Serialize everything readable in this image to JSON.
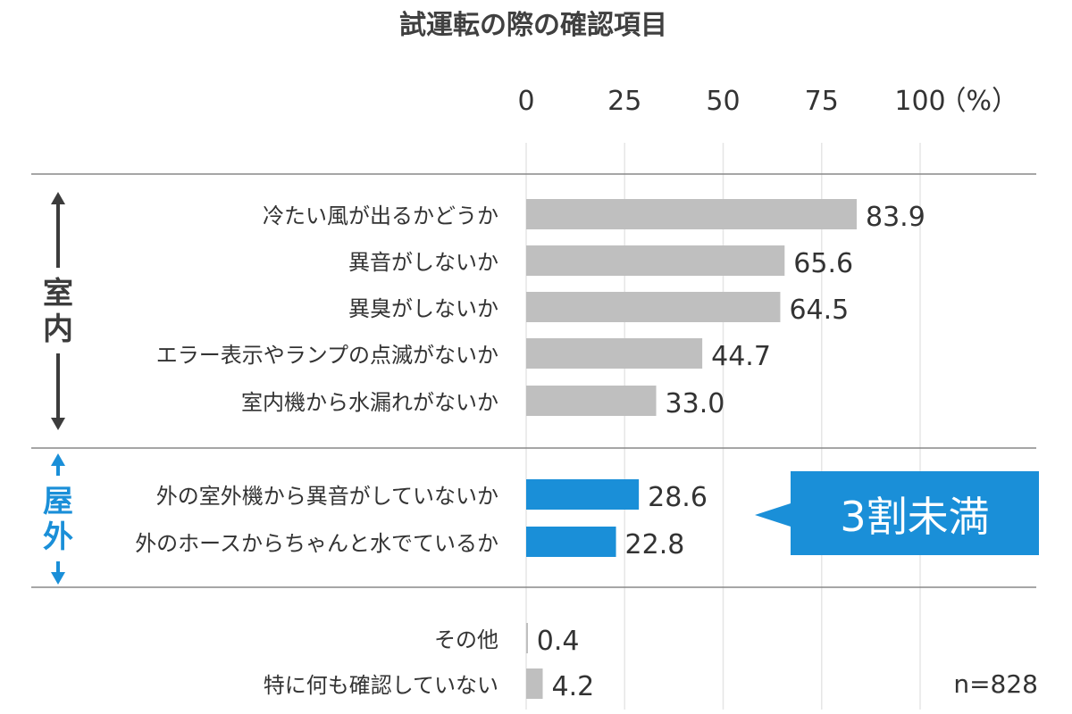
{
  "chart_data": {
    "type": "bar",
    "orientation": "horizontal",
    "title": "試運転の際の確認項目",
    "xlim": [
      0,
      100
    ],
    "xticks": [
      "0",
      "25",
      "50",
      "75",
      "100"
    ],
    "xunit": "（%）",
    "grid": true,
    "categories": [
      "冷たい風が出るかどうか",
      "異音がしないか",
      "異臭がしないか",
      "エラー表示やランプの点滅がないか",
      "室内機から水漏れがないか",
      "外の室外機から異音がしていないか",
      "外のホースからちゃんと水でているか",
      "その他",
      "特に何も確認していない"
    ],
    "values": [
      83.9,
      65.6,
      64.5,
      44.7,
      33.0,
      28.6,
      22.8,
      0.4,
      4.2
    ],
    "value_labels": [
      "83.9",
      "65.6",
      "64.5",
      "44.7",
      "33.0",
      "28.6",
      "22.8",
      "0.4",
      "4.2"
    ],
    "groups": [
      {
        "label": "室内",
        "color": "#3c3c3c",
        "items": [
          0,
          1,
          2,
          3,
          4
        ]
      },
      {
        "label": "屋外",
        "color": "#1a8fd8",
        "items": [
          5,
          6
        ]
      },
      {
        "label": "",
        "items": [
          7,
          8
        ]
      }
    ],
    "bar_colors": {
      "default": "#bfbfbf",
      "highlight": "#1a8fd8"
    },
    "callout": "3割未満",
    "note": "n=828"
  }
}
